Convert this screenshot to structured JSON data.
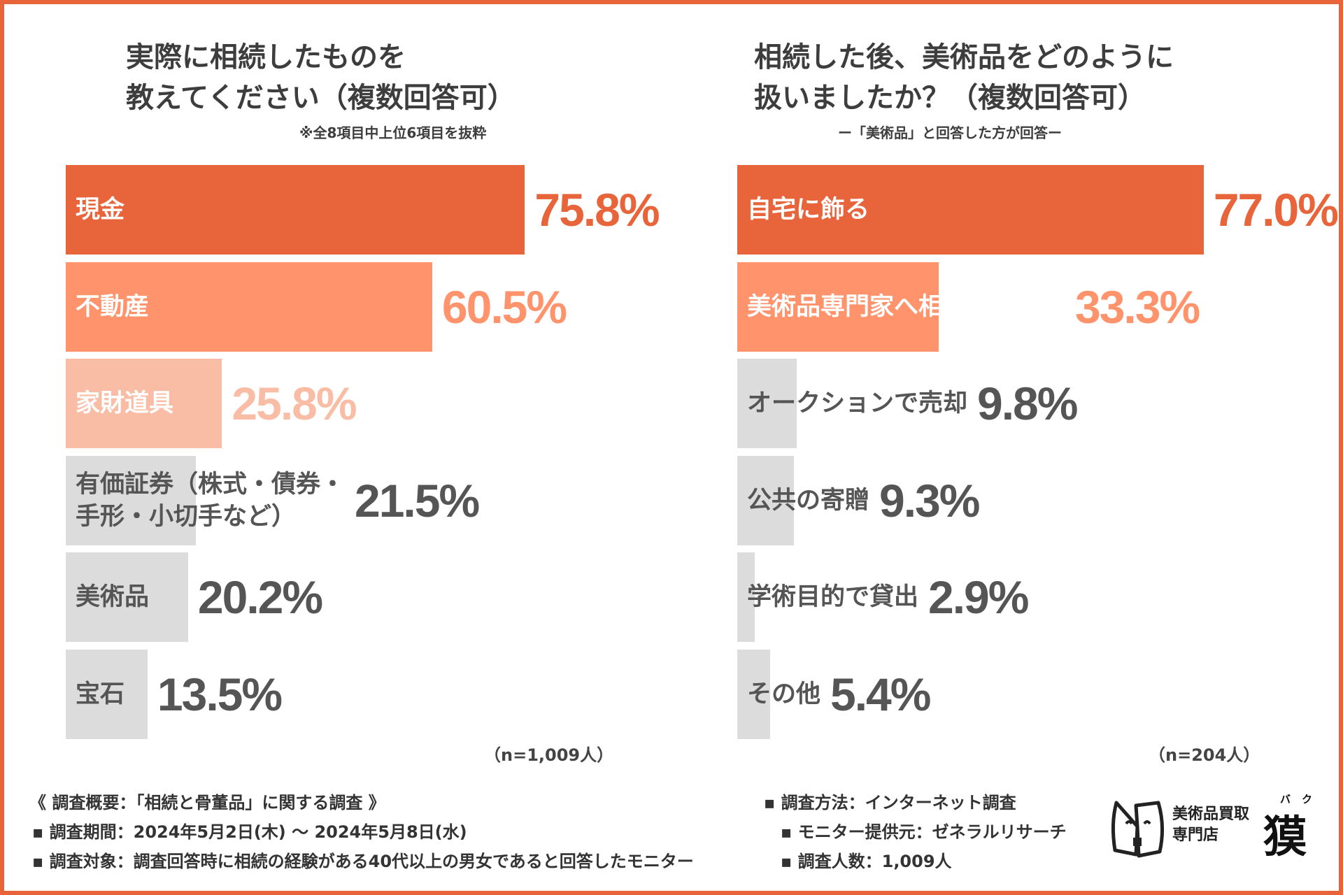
{
  "colors": {
    "accent": "#E8643A",
    "medium": "#FF946C",
    "light": "#F9BDA5",
    "gray_bar": "#DCDCDC",
    "gray_text": "#555555"
  },
  "left": {
    "title_line1": "実際に相続したものを",
    "title_line2": "教えてください（複数回答可）",
    "note": "※全8項目中上位6項目を抜粋",
    "n_label": "（n=1,009人）"
  },
  "right": {
    "title_line1": "相続した後、美術品をどのように",
    "title_line2": "扱いましたか？（複数回答可）",
    "note": "ー「美術品」と回答した方が回答ー",
    "n_label": "（n=204人）"
  },
  "chart_data": [
    {
      "type": "bar",
      "orientation": "horizontal",
      "title": "実際に相続したものを教えてください（複数回答可）",
      "categories": [
        "現金",
        "不動産",
        "家財道具",
        "有価証券（株式・債券・手形・小切手など）",
        "美術品",
        "宝石"
      ],
      "label_lines": [
        [
          "現金"
        ],
        [
          "不動産"
        ],
        [
          "家財道具"
        ],
        [
          "有価証券（株式・債券・",
          "手形・小切手など）"
        ],
        [
          "美術品"
        ],
        [
          "宝石"
        ]
      ],
      "values": [
        75.8,
        60.5,
        25.8,
        21.5,
        20.2,
        13.5
      ],
      "value_labels": [
        "75.8%",
        "60.5%",
        "25.8%",
        "21.5%",
        "20.2%",
        "13.5%"
      ],
      "unit": "%",
      "xlim": [
        0,
        100
      ]
    },
    {
      "type": "bar",
      "orientation": "horizontal",
      "title": "相続した後、美術品をどのように扱いましたか？（複数回答可）",
      "categories": [
        "自宅に飾る",
        "美術品専門家へ相談後、売却",
        "オークションで売却",
        "公共の寄贈",
        "学術目的で貸出",
        "その他"
      ],
      "label_lines": [
        [
          "自宅に飾る"
        ],
        [
          "美術品専門家へ相談後、売却"
        ],
        [
          "オークションで売却"
        ],
        [
          "公共の寄贈"
        ],
        [
          "学術目的で貸出"
        ],
        [
          "その他"
        ]
      ],
      "values": [
        77.0,
        33.3,
        9.8,
        9.3,
        2.9,
        5.4
      ],
      "value_labels": [
        "77.0%",
        "33.3%",
        "9.8%",
        "9.3%",
        "2.9%",
        "5.4%"
      ],
      "unit": "%",
      "xlim": [
        0,
        100
      ]
    }
  ],
  "footer": {
    "overview": "《 調査概要：「相続と骨董品」に関する調査 》",
    "period": "▪ 調査期間：2024年5月2日(木) 〜 2024年5月8日(水)",
    "target": "▪ 調査対象：調査回答時に相続の経験がある40代以上の男女であると回答したモニター",
    "method": "▪ 調査方法：インターネット調査",
    "provider": "▪ モニター提供元：ゼネラルリサーチ",
    "count": "▪ 調査人数：1,009人"
  },
  "logo": {
    "line1": "美術品買取",
    "line2": "専門店",
    "kanji": "獏",
    "ruby": "バク",
    "icon": "tapir-mask-icon"
  }
}
